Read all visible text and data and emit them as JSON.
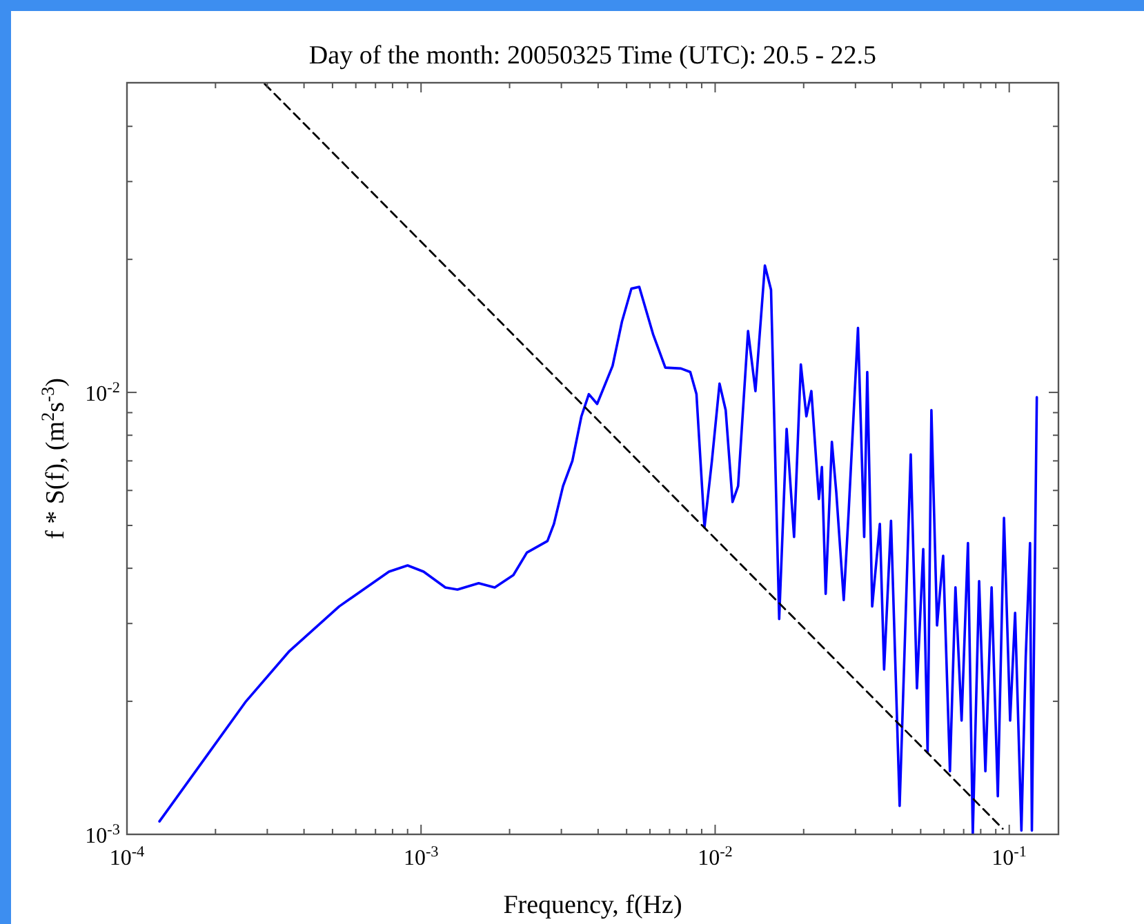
{
  "chart_data": {
    "type": "line",
    "title": "Day of the month: 20050325 Time (UTC): 20.5 - 22.5",
    "xlabel": "Frequency,  f(Hz)",
    "ylabel": "f * S(f), (m$^{2}$s$^{-3}$)",
    "log": "xy",
    "xlim": [
      0.0001,
      0.147
    ],
    "ylim": [
      0.001,
      0.0502
    ],
    "xticks": [
      {
        "value": 0.0001,
        "label": "10$^{-4}$"
      },
      {
        "value": 0.0002,
        "label": null
      },
      {
        "value": 0.0003,
        "label": null
      },
      {
        "value": 0.0004,
        "label": null
      },
      {
        "value": 0.0005,
        "label": null
      },
      {
        "value": 0.0006,
        "label": null
      },
      {
        "value": 0.0007,
        "label": null
      },
      {
        "value": 0.0008,
        "label": null
      },
      {
        "value": 0.0009,
        "label": null
      },
      {
        "value": 0.001,
        "label": "10$^{-3}$"
      },
      {
        "value": 0.002,
        "label": null
      },
      {
        "value": 0.003,
        "label": null
      },
      {
        "value": 0.004,
        "label": null
      },
      {
        "value": 0.005,
        "label": null
      },
      {
        "value": 0.006,
        "label": null
      },
      {
        "value": 0.007,
        "label": null
      },
      {
        "value": 0.008,
        "label": null
      },
      {
        "value": 0.009,
        "label": null
      },
      {
        "value": 0.01,
        "label": "10$^{-2}$"
      },
      {
        "value": 0.02,
        "label": null
      },
      {
        "value": 0.03,
        "label": null
      },
      {
        "value": 0.04,
        "label": null
      },
      {
        "value": 0.05,
        "label": null
      },
      {
        "value": 0.06,
        "label": null
      },
      {
        "value": 0.07,
        "label": null
      },
      {
        "value": 0.08,
        "label": null
      },
      {
        "value": 0.09,
        "label": null
      },
      {
        "value": 0.1,
        "label": "10$^{-1}$"
      }
    ],
    "yticks": [
      {
        "value": 0.001,
        "label": "10$^{-3}$"
      },
      {
        "value": 0.002,
        "label": null
      },
      {
        "value": 0.003,
        "label": null
      },
      {
        "value": 0.004,
        "label": null
      },
      {
        "value": 0.005,
        "label": null
      },
      {
        "value": 0.006,
        "label": null
      },
      {
        "value": 0.007,
        "label": null
      },
      {
        "value": 0.008,
        "label": null
      },
      {
        "value": 0.009,
        "label": null
      },
      {
        "value": 0.01,
        "label": "10$^{-2}$"
      },
      {
        "value": 0.02,
        "label": null
      },
      {
        "value": 0.03,
        "label": null
      },
      {
        "value": 0.04,
        "label": null
      }
    ],
    "series": [
      {
        "color": "#0000ff",
        "line_style": "solid",
        "x": [
          0.000129,
          0.00019,
          0.000254,
          0.000357,
          0.000527,
          0.000778,
          0.0009,
          0.00102,
          0.00121,
          0.00133,
          0.00157,
          0.00178,
          0.00206,
          0.00229,
          0.00269,
          0.00283,
          0.00304,
          0.00327,
          0.00351,
          0.00372,
          0.00397,
          0.00448,
          0.00482,
          0.00519,
          0.00552,
          0.00615,
          0.00677,
          0.00765,
          0.00823,
          0.00864,
          0.0092,
          0.00975,
          0.01035,
          0.01086,
          0.01146,
          0.01197,
          0.01294,
          0.01371,
          0.01476,
          0.01549,
          0.01651,
          0.0175,
          0.01855,
          0.01956,
          0.02043,
          0.02124,
          0.02253,
          0.02307,
          0.02376,
          0.02494,
          0.02582,
          0.02737,
          0.02845,
          0.0306,
          0.03212,
          0.0329,
          0.0342,
          0.03631,
          0.03754,
          0.03963,
          0.0424,
          0.04406,
          0.04625,
          0.04855,
          0.051,
          0.05278,
          0.05437,
          0.05682,
          0.05961,
          0.06286,
          0.06564,
          0.06887,
          0.07239,
          0.07518,
          0.079,
          0.08297,
          0.08711,
          0.09145,
          0.09598,
          0.1007,
          0.1047,
          0.11,
          0.1138,
          0.1177,
          0.1194,
          0.1241
        ],
        "values": [
          0.00107,
          0.00153,
          0.002,
          0.0026,
          0.00328,
          0.00393,
          0.00406,
          0.00393,
          0.00362,
          0.00358,
          0.0037,
          0.00362,
          0.00386,
          0.00434,
          0.00461,
          0.00504,
          0.00614,
          0.007,
          0.00883,
          0.00991,
          0.00942,
          0.01148,
          0.01445,
          0.01717,
          0.01733,
          0.01355,
          0.01138,
          0.01133,
          0.01112,
          0.00991,
          0.00495,
          0.007,
          0.01047,
          0.00912,
          0.00565,
          0.00614,
          0.01377,
          0.01007,
          0.01937,
          0.01707,
          0.00307,
          0.00827,
          0.00471,
          0.01157,
          0.00883,
          0.01007,
          0.00574,
          0.00678,
          0.0035,
          0.00773,
          0.00594,
          0.00339,
          0.00538,
          0.01399,
          0.00471,
          0.01112,
          0.00328,
          0.00504,
          0.00236,
          0.00512,
          0.00116,
          0.0026,
          0.00724,
          0.00214,
          0.00442,
          0.00153,
          0.00912,
          0.00297,
          0.00427,
          0.00139,
          0.00362,
          0.00181,
          0.00456,
          0.001,
          0.00374,
          0.00139,
          0.00362,
          0.00122,
          0.0052,
          0.00181,
          0.00317,
          0.00102,
          0.00252,
          0.00456,
          0.00102,
          0.00975
        ]
      },
      {
        "color": "#000000",
        "line_style": "dashed",
        "x": [
          0.000294,
          0.095
        ],
        "values": [
          0.0499,
          0.00103
        ]
      }
    ]
  }
}
